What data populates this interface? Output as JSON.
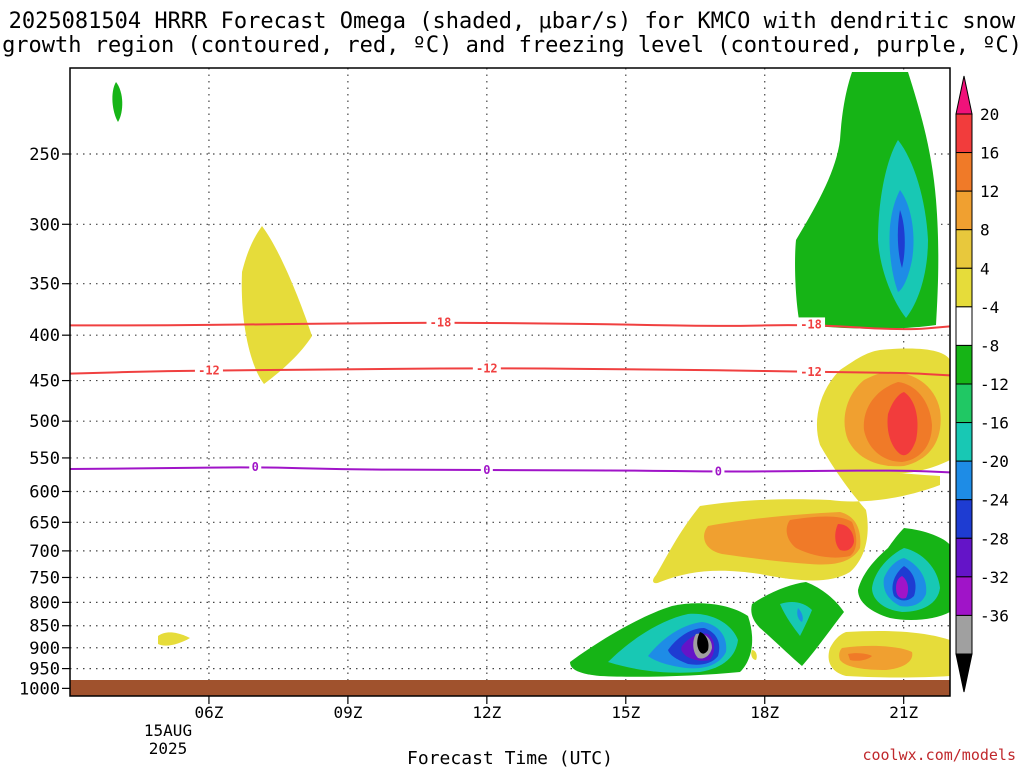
{
  "chart_data": {
    "type": "contour",
    "title_lines": [
      "2025081504 HRRR Forecast Omega (shaded, μbar/s) for KMCO with dendritic snow",
      "growth region (contoured, red, ºC) and freezing level (contoured, purple, ºC)"
    ],
    "xlabel": "Forecast Time (UTC)",
    "x_ticks": [
      "06Z",
      "09Z",
      "12Z",
      "15Z",
      "18Z",
      "21Z"
    ],
    "x_date_label": [
      "15AUG",
      "2025"
    ],
    "y_ticks": [
      250,
      300,
      350,
      400,
      450,
      500,
      550,
      600,
      650,
      700,
      750,
      800,
      850,
      900,
      950,
      1000
    ],
    "ylim": [
      200,
      1020
    ],
    "y_scale": "log-pressure",
    "grid": true,
    "colorbar": {
      "labels": [
        "20",
        "16",
        "12",
        "8",
        "4",
        "-4",
        "-8",
        "-12",
        "-16",
        "-20",
        "-24",
        "-28",
        "-32",
        "-36"
      ],
      "colors": [
        "#f0127a",
        "#f23c3c",
        "#f07a28",
        "#f0a030",
        "#e8c83c",
        "#e6dc3a",
        "#ffffff",
        "#16b416",
        "#20c864",
        "#18c8b4",
        "#1e8ce6",
        "#1e3cd2",
        "#6414c8",
        "#a014c8",
        "#a0a0a0",
        "#000000"
      ]
    },
    "contours": [
      {
        "label": "-18",
        "color": "#f04040",
        "pressure": [
          390,
          390,
          389,
          388,
          387,
          388,
          389,
          391,
          389,
          395,
          391
        ]
      },
      {
        "label": "-12",
        "color": "#f04040",
        "pressure": [
          442,
          439,
          438,
          437,
          436,
          436,
          437,
          438,
          440,
          441,
          444
        ]
      },
      {
        "label": "0",
        "color": "#a014c8",
        "pressure": [
          566,
          565,
          563,
          567,
          567,
          568,
          568,
          570,
          569,
          568,
          571
        ]
      }
    ],
    "contour_label_hours": [
      {
        "contour": 0,
        "hours": [
          11,
          19
        ]
      },
      {
        "contour": 1,
        "hours": [
          6,
          12,
          19
        ]
      },
      {
        "contour": 2,
        "hours": [
          7,
          12,
          17
        ]
      }
    ],
    "contour_x_hours": [
      3,
      5,
      7,
      9,
      11,
      13,
      15,
      17,
      19,
      21,
      22
    ],
    "x_hours_range": [
      3,
      22
    ],
    "credit": "coolwx.com/models"
  }
}
